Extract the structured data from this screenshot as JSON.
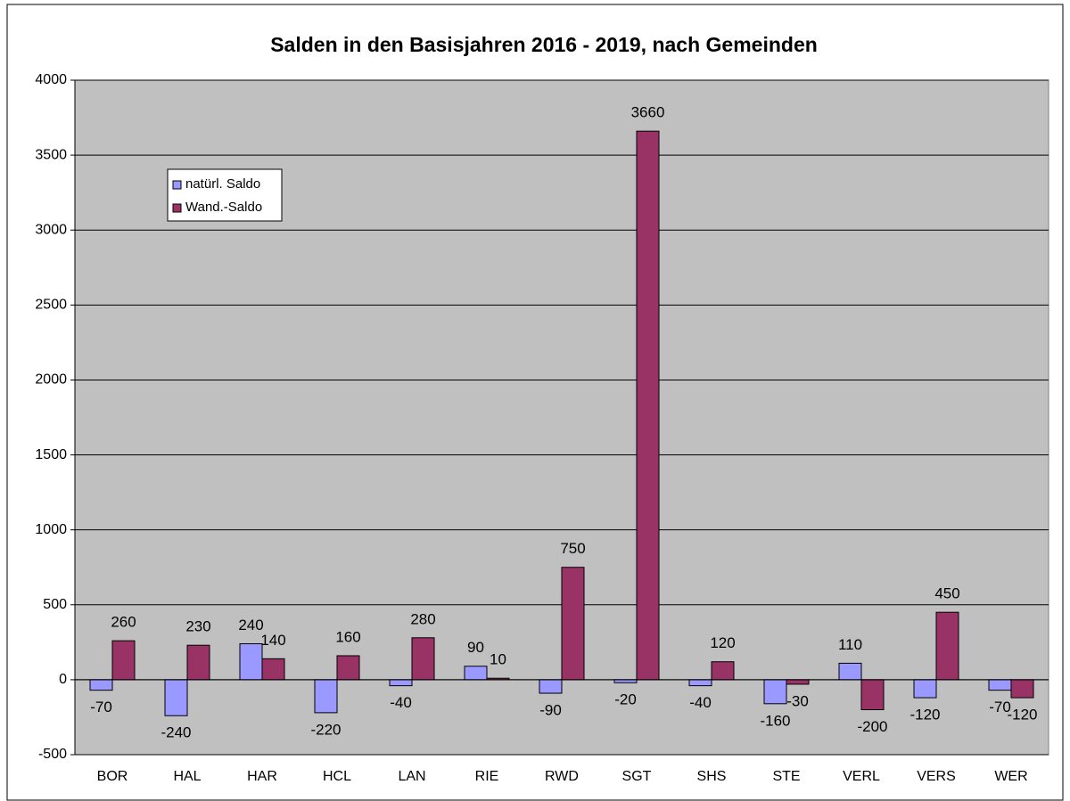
{
  "chart_data": {
    "type": "bar",
    "title": "Salden in den Basisjahren 2016 - 2019, nach Gemeinden",
    "categories": [
      "BOR",
      "HAL",
      "HAR",
      "HCL",
      "LAN",
      "RIE",
      "RWD",
      "SGT",
      "SHS",
      "STE",
      "VERL",
      "VERS",
      "WER"
    ],
    "series": [
      {
        "name": "natürl. Saldo",
        "color": "#9999ff",
        "values": [
          -70,
          -240,
          240,
          -220,
          -40,
          90,
          -90,
          -20,
          -40,
          -160,
          110,
          -120,
          -70
        ]
      },
      {
        "name": "Wand.-Saldo",
        "color": "#993366",
        "values": [
          260,
          230,
          140,
          160,
          280,
          10,
          750,
          3660,
          120,
          -30,
          -200,
          450,
          -120
        ]
      }
    ],
    "ylim": [
      -500,
      4000
    ],
    "yticks": [
      -500,
      0,
      500,
      1000,
      1500,
      2000,
      2500,
      3000,
      3500,
      4000
    ],
    "grid": true,
    "legend": "upper left"
  }
}
